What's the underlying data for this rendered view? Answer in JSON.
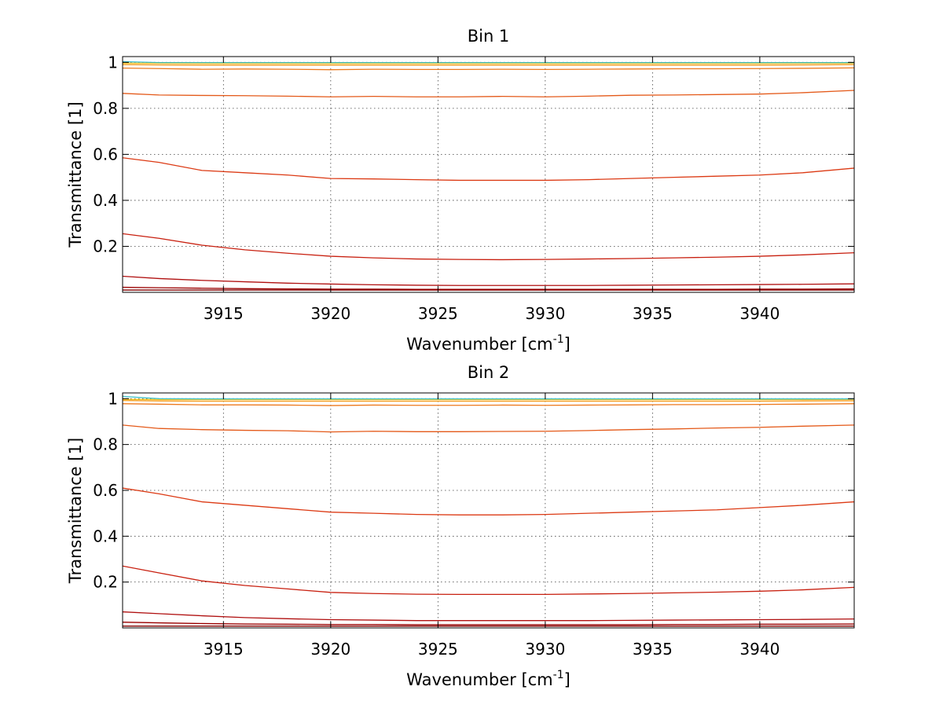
{
  "figure": {
    "background": "#ffffff"
  },
  "chart_data": [
    {
      "type": "line",
      "title": "Bin 1",
      "xlabel": "Wavenumber [cm",
      "xlabel_sup": "-1",
      "xlabel_suffix": "]",
      "ylabel": "Transmittance [1]",
      "xlim": [
        3910.3,
        3944.4
      ],
      "ylim": [
        0.0,
        1.025
      ],
      "xticks": [
        3915,
        3920,
        3925,
        3930,
        3935,
        3940
      ],
      "xtick_labels": [
        "3915",
        "3920",
        "3925",
        "3930",
        "3935",
        "3940"
      ],
      "yticks": [
        0.2,
        0.4,
        0.6,
        0.8,
        1.0
      ],
      "ytick_labels": [
        "0.2",
        "0.4",
        "0.6",
        "0.8",
        "1"
      ],
      "grid": true,
      "grid_style": "dotted",
      "x": [
        3910.3,
        3912,
        3914,
        3916,
        3918,
        3920,
        3922,
        3924,
        3926,
        3928,
        3930,
        3932,
        3934,
        3936,
        3938,
        3940,
        3942,
        3944.4
      ],
      "series": [
        {
          "color": "#800000",
          "values": [
            0.01,
            0.01,
            0.01,
            0.01,
            0.01,
            0.01,
            0.01,
            0.01,
            0.01,
            0.01,
            0.01,
            0.01,
            0.01,
            0.01,
            0.01,
            0.01,
            0.01,
            0.01
          ]
        },
        {
          "color": "#9a0000",
          "values": [
            0.022,
            0.02,
            0.018,
            0.016,
            0.015,
            0.014,
            0.014,
            0.013,
            0.013,
            0.013,
            0.013,
            0.013,
            0.013,
            0.013,
            0.013,
            0.014,
            0.014,
            0.015
          ]
        },
        {
          "color": "#b01010",
          "values": [
            0.07,
            0.06,
            0.052,
            0.046,
            0.04,
            0.036,
            0.033,
            0.031,
            0.03,
            0.03,
            0.03,
            0.03,
            0.031,
            0.032,
            0.033,
            0.034,
            0.035,
            0.037
          ]
        },
        {
          "color": "#c82010",
          "values": [
            0.255,
            0.235,
            0.205,
            0.185,
            0.17,
            0.157,
            0.15,
            0.145,
            0.143,
            0.142,
            0.143,
            0.145,
            0.147,
            0.15,
            0.153,
            0.157,
            0.163,
            0.172
          ]
        },
        {
          "color": "#dc3a14",
          "values": [
            0.585,
            0.565,
            0.53,
            0.52,
            0.51,
            0.495,
            0.493,
            0.49,
            0.487,
            0.487,
            0.487,
            0.49,
            0.495,
            0.5,
            0.505,
            0.51,
            0.52,
            0.54
          ]
        },
        {
          "color": "#e45a1a",
          "values": [
            0.865,
            0.858,
            0.856,
            0.855,
            0.853,
            0.85,
            0.852,
            0.85,
            0.85,
            0.852,
            0.85,
            0.853,
            0.857,
            0.858,
            0.86,
            0.862,
            0.868,
            0.878
          ]
        },
        {
          "color": "#ec7a1e",
          "values": [
            0.975,
            0.973,
            0.97,
            0.971,
            0.97,
            0.968,
            0.97,
            0.969,
            0.969,
            0.97,
            0.969,
            0.97,
            0.971,
            0.972,
            0.972,
            0.973,
            0.974,
            0.976
          ]
        },
        {
          "color": "#f39a1c",
          "values": [
            0.99,
            0.989,
            0.988,
            0.988,
            0.988,
            0.988,
            0.988,
            0.988,
            0.988,
            0.988,
            0.988,
            0.988,
            0.988,
            0.988,
            0.988,
            0.988,
            0.989,
            0.99
          ]
        },
        {
          "color": "#f7c21a",
          "values": [
            0.996,
            0.996,
            0.995,
            0.995,
            0.995,
            0.995,
            0.995,
            0.995,
            0.995,
            0.995,
            0.995,
            0.995,
            0.995,
            0.995,
            0.995,
            0.995,
            0.996,
            0.996
          ]
        },
        {
          "color": "#3fc0c8",
          "values": [
            1.003,
            0.999,
            0.999,
            0.999,
            0.999,
            0.999,
            0.999,
            0.999,
            0.999,
            0.999,
            0.999,
            0.999,
            0.999,
            0.999,
            0.999,
            0.999,
            0.999,
            0.999
          ]
        }
      ]
    },
    {
      "type": "line",
      "title": "Bin 2",
      "xlabel": "Wavenumber [cm",
      "xlabel_sup": "-1",
      "xlabel_suffix": "]",
      "ylabel": "Transmittance [1]",
      "xlim": [
        3910.3,
        3944.4
      ],
      "ylim": [
        0.0,
        1.025
      ],
      "xticks": [
        3915,
        3920,
        3925,
        3930,
        3935,
        3940
      ],
      "xtick_labels": [
        "3915",
        "3920",
        "3925",
        "3930",
        "3935",
        "3940"
      ],
      "yticks": [
        0.2,
        0.4,
        0.6,
        0.8,
        1.0
      ],
      "ytick_labels": [
        "0.2",
        "0.4",
        "0.6",
        "0.8",
        "1"
      ],
      "grid": true,
      "grid_style": "dotted",
      "x": [
        3910.3,
        3912,
        3914,
        3916,
        3918,
        3920,
        3922,
        3924,
        3926,
        3928,
        3930,
        3932,
        3934,
        3936,
        3938,
        3940,
        3942,
        3944.4
      ],
      "series": [
        {
          "color": "#800000",
          "values": [
            0.008,
            0.008,
            0.008,
            0.008,
            0.008,
            0.008,
            0.008,
            0.008,
            0.008,
            0.008,
            0.008,
            0.008,
            0.008,
            0.008,
            0.008,
            0.008,
            0.008,
            0.008
          ]
        },
        {
          "color": "#9a0000",
          "values": [
            0.025,
            0.022,
            0.019,
            0.017,
            0.016,
            0.015,
            0.015,
            0.014,
            0.014,
            0.014,
            0.014,
            0.014,
            0.014,
            0.015,
            0.015,
            0.016,
            0.016,
            0.017
          ]
        },
        {
          "color": "#b01010",
          "values": [
            0.07,
            0.062,
            0.053,
            0.045,
            0.04,
            0.036,
            0.034,
            0.032,
            0.032,
            0.032,
            0.032,
            0.032,
            0.033,
            0.034,
            0.035,
            0.036,
            0.037,
            0.039
          ]
        },
        {
          "color": "#c82010",
          "values": [
            0.27,
            0.24,
            0.205,
            0.185,
            0.17,
            0.155,
            0.15,
            0.147,
            0.146,
            0.146,
            0.146,
            0.148,
            0.15,
            0.153,
            0.156,
            0.16,
            0.166,
            0.177
          ]
        },
        {
          "color": "#dc3a14",
          "values": [
            0.61,
            0.585,
            0.55,
            0.535,
            0.52,
            0.505,
            0.5,
            0.495,
            0.493,
            0.493,
            0.495,
            0.5,
            0.505,
            0.51,
            0.515,
            0.525,
            0.535,
            0.55
          ]
        },
        {
          "color": "#e45a1a",
          "values": [
            0.885,
            0.87,
            0.865,
            0.862,
            0.86,
            0.855,
            0.858,
            0.856,
            0.856,
            0.857,
            0.858,
            0.861,
            0.865,
            0.868,
            0.872,
            0.875,
            0.88,
            0.885
          ]
        },
        {
          "color": "#ec7a1e",
          "values": [
            0.978,
            0.976,
            0.973,
            0.973,
            0.972,
            0.97,
            0.972,
            0.971,
            0.971,
            0.972,
            0.971,
            0.972,
            0.973,
            0.974,
            0.974,
            0.975,
            0.976,
            0.978
          ]
        },
        {
          "color": "#f39a1c",
          "values": [
            0.992,
            0.99,
            0.989,
            0.989,
            0.989,
            0.989,
            0.989,
            0.989,
            0.989,
            0.989,
            0.989,
            0.989,
            0.989,
            0.989,
            0.989,
            0.989,
            0.99,
            0.991
          ]
        },
        {
          "color": "#f7c21a",
          "values": [
            0.997,
            0.996,
            0.996,
            0.996,
            0.996,
            0.996,
            0.996,
            0.996,
            0.996,
            0.996,
            0.996,
            0.996,
            0.996,
            0.996,
            0.996,
            0.996,
            0.996,
            0.997
          ]
        },
        {
          "color": "#3fc0c8",
          "values": [
            1.01,
            1.0,
            0.999,
            0.999,
            0.999,
            0.999,
            0.999,
            0.999,
            0.999,
            0.999,
            0.999,
            0.999,
            0.999,
            0.999,
            0.999,
            0.999,
            0.999,
            0.999
          ]
        }
      ]
    }
  ]
}
